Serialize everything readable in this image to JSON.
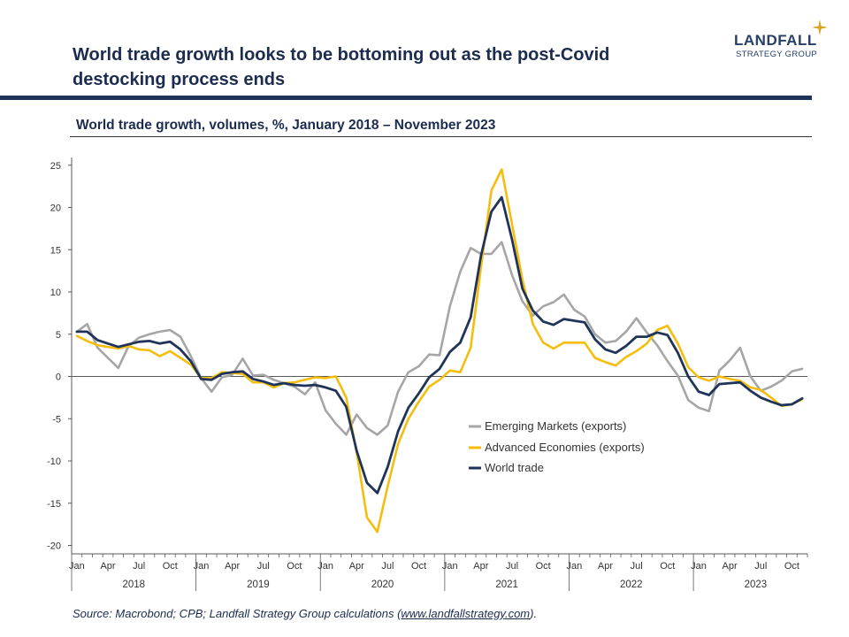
{
  "header": {
    "title": "World trade growth looks to be bottoming out as the post-Covid destocking process ends",
    "logo_name": "LANDFALL",
    "logo_sub": "STRATEGY GROUP"
  },
  "subtitle": "World trade growth, volumes, %, January 2018 – November 2023",
  "source": {
    "prefix": "Source: Macrobond; CPB; Landfall Strategy Group calculations (",
    "link": "www.landfallstrategy.com",
    "suffix": ")."
  },
  "colors": {
    "emerging": "#a6a6a6",
    "advanced": "#f5be0f",
    "world": "#1f3458",
    "zero_line": "#595959"
  },
  "chart_data": {
    "type": "line",
    "x_start": "2018-01",
    "x_end": "2023-11",
    "x_tick_labels": [
      "Jan",
      "Apr",
      "Jul",
      "Oct",
      "Jan",
      "Apr",
      "Jul",
      "Oct",
      "Jan",
      "Apr",
      "Jul",
      "Oct",
      "Jan",
      "Apr",
      "Jul",
      "Oct",
      "Jan",
      "Apr",
      "Jul",
      "Oct",
      "Jan",
      "Apr",
      "Jul",
      "Oct"
    ],
    "x_year_labels": [
      "2018",
      "2019",
      "2020",
      "2021",
      "2022",
      "2023"
    ],
    "ylim": [
      -21,
      26.5
    ],
    "y_ticks": [
      25,
      20,
      15,
      10,
      5,
      0,
      -5,
      -10,
      -15,
      -20
    ],
    "y_tick_labels": [
      "25",
      "20",
      "15",
      "10",
      "5",
      "0",
      "-5",
      "-10",
      "-15",
      "-20"
    ],
    "grid": false,
    "legend_position": "center-right",
    "series": [
      {
        "name": "Emerging Markets (exports)",
        "values": [
          5.3,
          6.2,
          3.4,
          2.2,
          1.0,
          3.6,
          4.6,
          5.0,
          5.3,
          5.5,
          4.7,
          2.4,
          -0.2,
          -1.8,
          -0.1,
          0.2,
          2.1,
          0.1,
          0.2,
          -0.4,
          -0.8,
          -1.2,
          -2.1,
          -0.7,
          -4.0,
          -5.6,
          -6.9,
          -4.5,
          -6.1,
          -6.9,
          -5.8,
          -1.8,
          0.5,
          1.2,
          2.6,
          2.5,
          8.3,
          12.4,
          15.2,
          14.5,
          14.5,
          15.9,
          12.0,
          8.9,
          7.2,
          8.3,
          8.8,
          9.7,
          7.9,
          7.1,
          5.0,
          4.0,
          4.2,
          5.3,
          6.9,
          5.2,
          3.7,
          1.8,
          0.1,
          -2.8,
          -3.7,
          -4.1,
          0.7,
          1.9,
          3.4,
          0.0,
          -1.7,
          -1.2,
          -0.5,
          0.6,
          0.9
        ]
      },
      {
        "name": "Advanced Economies (exports)",
        "values": [
          4.8,
          4.2,
          3.7,
          3.5,
          3.3,
          3.6,
          3.2,
          3.1,
          2.4,
          3.0,
          2.2,
          1.4,
          -0.2,
          -0.2,
          0.5,
          0.4,
          0.3,
          -0.7,
          -0.7,
          -1.3,
          -0.8,
          -0.7,
          -0.4,
          -0.1,
          -0.2,
          0.0,
          -2.5,
          -9.0,
          -16.7,
          -18.4,
          -13.0,
          -8.0,
          -5.0,
          -3.0,
          -1.2,
          -0.4,
          0.7,
          0.5,
          3.4,
          13.0,
          22.0,
          24.5,
          18.0,
          11.5,
          6.2,
          4.0,
          3.3,
          4.0,
          4.0,
          4.0,
          2.2,
          1.7,
          1.3,
          2.3,
          3.0,
          3.9,
          5.5,
          6.0,
          3.9,
          1.1,
          -0.1,
          -0.5,
          0.0,
          -0.3,
          -0.5,
          -1.3,
          -1.6,
          -2.5,
          -3.5,
          -3.3,
          -2.7
        ]
      },
      {
        "name": "World trade",
        "values": [
          5.3,
          5.3,
          4.3,
          3.9,
          3.5,
          3.8,
          4.1,
          4.2,
          3.9,
          4.1,
          3.2,
          1.8,
          -0.3,
          -0.4,
          0.3,
          0.5,
          0.6,
          -0.3,
          -0.6,
          -1.0,
          -0.8,
          -1.0,
          -1.1,
          -1.0,
          -1.3,
          -1.7,
          -3.6,
          -8.8,
          -12.6,
          -13.8,
          -10.7,
          -6.5,
          -3.7,
          -2.0,
          -0.1,
          0.9,
          2.9,
          4.0,
          7.0,
          14.3,
          19.5,
          21.2,
          16.2,
          10.4,
          7.8,
          6.5,
          6.1,
          6.8,
          6.6,
          6.4,
          4.4,
          3.2,
          2.8,
          3.6,
          4.7,
          4.7,
          5.2,
          4.9,
          2.8,
          0.0,
          -1.8,
          -2.2,
          -0.9,
          -0.8,
          -0.7,
          -1.7,
          -2.5,
          -3.0,
          -3.4,
          -3.3,
          -2.6
        ]
      }
    ]
  }
}
